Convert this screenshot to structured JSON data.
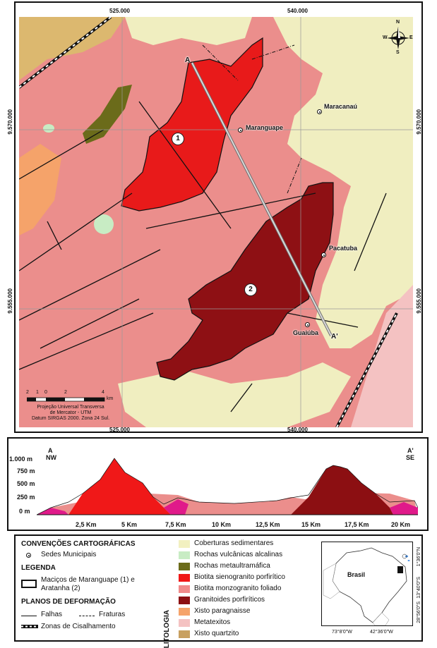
{
  "map": {
    "grid": {
      "x_top": [
        "525.000",
        "540.000"
      ],
      "x_bottom": [
        "525.000",
        "540.000"
      ],
      "y_left": [
        "9.570.000",
        "9.555.000"
      ],
      "y_right": [
        "9.570.000",
        "9.555.000"
      ]
    },
    "towns": [
      "Maranguape",
      "Maracanaú",
      "Pacatuba",
      "Guaiúba"
    ],
    "massif_numbers": [
      "1",
      "2"
    ],
    "section_points": [
      "A",
      "A'"
    ],
    "scale": {
      "ticks": [
        "2",
        "1",
        "0",
        "2",
        "4"
      ],
      "unit": "km"
    },
    "projection_lines": [
      "Projeção Universal Transversa",
      "de Mercator - UTM",
      "Datum SIRGAS 2000. Zona 24 Sul."
    ],
    "north_arrow": {
      "n": "N",
      "s": "S",
      "e": "E",
      "w": "W"
    }
  },
  "profile": {
    "left_end": "A",
    "left_dir": "NW",
    "right_end": "A'",
    "right_dir": "SE",
    "elev_labels": [
      "1.000 m",
      "750 m",
      "500 m",
      "250 m",
      "0 m"
    ],
    "dist_labels": [
      "2,5 Km",
      "5 Km",
      "7,5 Km",
      "10 Km",
      "12,5 Km",
      "15 Km",
      "17,5 Km",
      "20 Km"
    ]
  },
  "legend": {
    "conventions_title": "CONVENÇÕES CARTOGRÁFICAS",
    "seats_label": "Sedes Municipais",
    "legend_title": "LEGENDA",
    "massifs_label_1": "Maciços de Maranguape (1) e",
    "massifs_label_2": "Aratanha (2)",
    "deformation_title": "PLANOS DE DEFORMAÇÃO",
    "faults_label": "Falhas",
    "fractures_label": "Fraturas",
    "shear_label": "Zonas de Cisalhamento"
  },
  "lithology": {
    "title": "LITOLOGIA",
    "units": [
      {
        "name": "Coberturas sedimentares",
        "color": "#f2f0c0"
      },
      {
        "name": "Rochas vulcânicas alcalinas",
        "color": "#c8ecc4"
      },
      {
        "name": "Rochas metaultramáfica",
        "color": "#6b6b1a"
      },
      {
        "name": "Biotita sienogranito porfirítico",
        "color": "#f01818"
      },
      {
        "name": "Biotita monzogranito foliado",
        "color": "#f08a8a"
      },
      {
        "name": "Granitoides porfiríticos",
        "color": "#8c0f12"
      },
      {
        "name": "Xisto paragnaisse",
        "color": "#f5a36a"
      },
      {
        "name": "Metatexitos",
        "color": "#f4c2c2"
      },
      {
        "name": "Xisto quartzito",
        "color": "#c8a060"
      }
    ]
  },
  "inset": {
    "country_label": "Brasil",
    "lon_labels": [
      "73°8'0\"W",
      "42°36'0\"W"
    ],
    "lat_labels": [
      "1°36'0\"N",
      "13°40'0\"S",
      "28°56'0\"S"
    ]
  }
}
